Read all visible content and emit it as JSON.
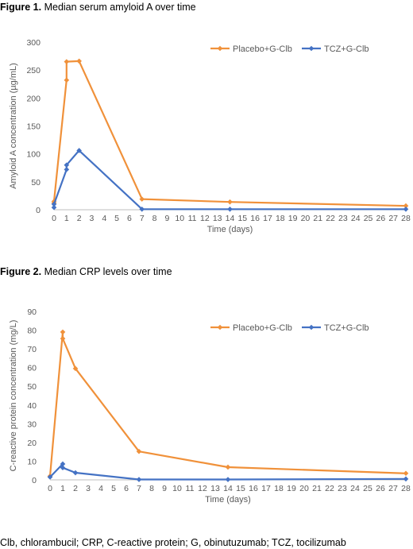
{
  "figures": [
    {
      "label": "Figure 1.",
      "caption": "Median serum amyloid A over time"
    },
    {
      "label": "Figure 2.",
      "caption": "Median CRP levels over time"
    }
  ],
  "footnote": "Clb, chlorambucil; CRP, C-reactive protein; G, obinutuzumab; TCZ, tocilizumab",
  "colors": {
    "placebo": "#F0913A",
    "tcz": "#4472C4",
    "axis": "#BFBFBF",
    "text": "#595959"
  },
  "chart_data": [
    {
      "type": "line",
      "title": "",
      "xlabel": "Time (days)",
      "ylabel": "Amyloid A concentration (µg/mL)",
      "xlim": [
        0,
        28
      ],
      "ylim": [
        0,
        300
      ],
      "yticks": [
        0,
        50,
        100,
        150,
        200,
        250,
        300
      ],
      "xticks": [
        0,
        1,
        2,
        3,
        4,
        5,
        6,
        7,
        8,
        9,
        10,
        11,
        12,
        13,
        14,
        15,
        16,
        17,
        18,
        19,
        20,
        21,
        22,
        23,
        24,
        25,
        26,
        27,
        28
      ],
      "grid": false,
      "legend": "top-right",
      "series": [
        {
          "name": "Placebo+G-Clb",
          "color": "#F0913A",
          "x": [
            0,
            0,
            1,
            1,
            2,
            7,
            14,
            28
          ],
          "y": [
            12,
            15,
            232,
            265,
            266,
            19,
            14,
            7
          ]
        },
        {
          "name": "TCZ+G-Clb",
          "color": "#4472C4",
          "x": [
            0,
            0,
            1,
            1,
            2,
            7,
            14,
            28
          ],
          "y": [
            4,
            10,
            72,
            80,
            106,
            1,
            1,
            1
          ]
        }
      ]
    },
    {
      "type": "line",
      "title": "",
      "xlabel": "Time (days)",
      "ylabel": "C-reactive protein concentration (mg/L)",
      "xlim": [
        0,
        28
      ],
      "ylim": [
        0,
        90
      ],
      "yticks": [
        0,
        10,
        20,
        30,
        40,
        50,
        60,
        70,
        80,
        90
      ],
      "xticks": [
        0,
        1,
        2,
        3,
        4,
        5,
        6,
        7,
        8,
        9,
        10,
        11,
        12,
        13,
        14,
        15,
        16,
        17,
        18,
        19,
        20,
        21,
        22,
        23,
        24,
        25,
        26,
        27,
        28
      ],
      "grid": false,
      "legend": "top-right",
      "series": [
        {
          "name": "Placebo+G-Clb",
          "color": "#F0913A",
          "x": [
            0,
            1,
            1,
            2,
            7,
            14,
            28
          ],
          "y": [
            2,
            79,
            75.5,
            59.5,
            15.2,
            6.8,
            3.5
          ]
        },
        {
          "name": "TCZ+G-Clb",
          "color": "#4472C4",
          "x": [
            0,
            1,
            1,
            2,
            7,
            14,
            28
          ],
          "y": [
            1.5,
            8.5,
            6.5,
            3.8,
            0.2,
            0.2,
            0.5
          ]
        }
      ]
    }
  ]
}
